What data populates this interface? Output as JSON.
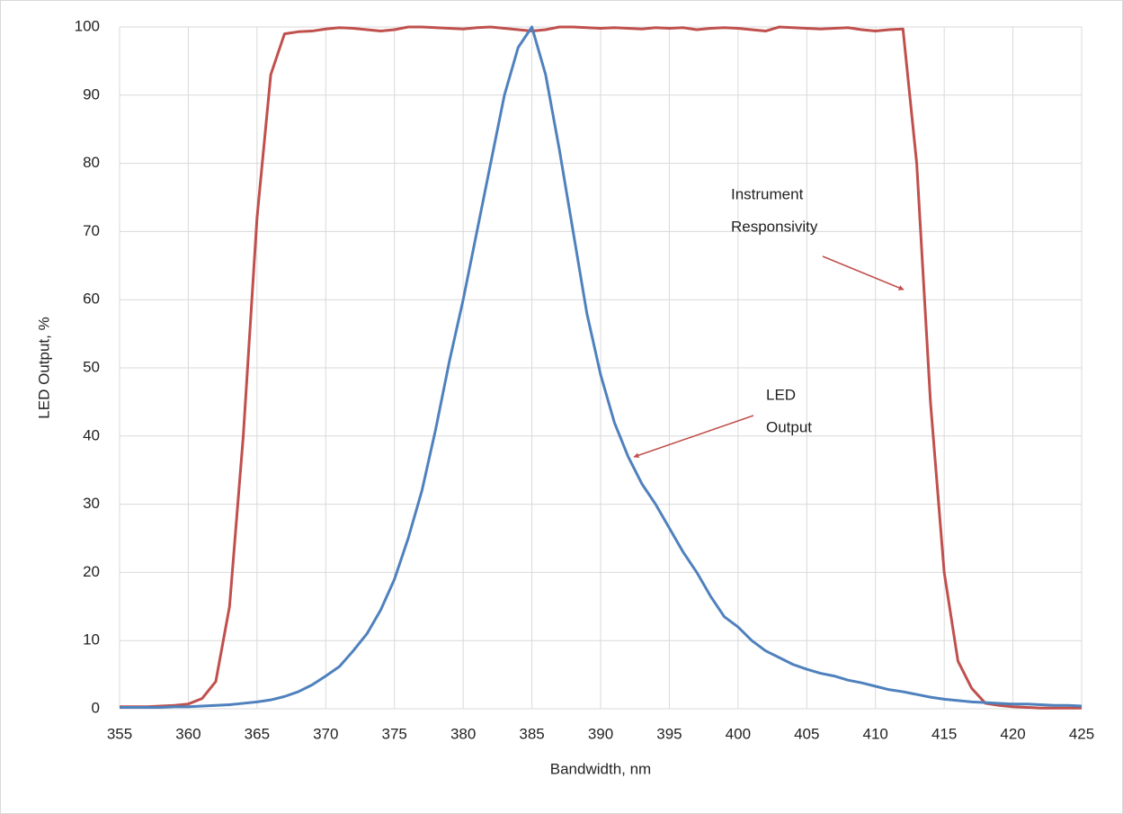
{
  "chart_data": {
    "type": "line",
    "x_label": "Bandwidth, nm",
    "y_label": "LED Output, %",
    "x": [
      355,
      356,
      357,
      358,
      359,
      360,
      361,
      362,
      363,
      364,
      365,
      366,
      367,
      368,
      369,
      370,
      371,
      372,
      373,
      374,
      375,
      376,
      377,
      378,
      379,
      380,
      381,
      382,
      383,
      384,
      385,
      386,
      387,
      388,
      389,
      390,
      391,
      392,
      393,
      394,
      395,
      396,
      397,
      398,
      399,
      400,
      401,
      402,
      403,
      404,
      405,
      406,
      407,
      408,
      409,
      410,
      411,
      412,
      413,
      414,
      415,
      416,
      417,
      418,
      419,
      420,
      421,
      422,
      423,
      424,
      425
    ],
    "series": [
      {
        "name": "Instrument Responsivity",
        "color": "#c0504d",
        "values": [
          0.3,
          0.3,
          0.3,
          0.4,
          0.5,
          0.7,
          1.5,
          4,
          15,
          40,
          72,
          93,
          99,
          99.3,
          99.4,
          99.7,
          99.9,
          99.8,
          99.6,
          99.4,
          99.6,
          100,
          100,
          99.9,
          99.8,
          99.7,
          99.9,
          100,
          99.8,
          99.6,
          99.4,
          99.6,
          100,
          100,
          99.9,
          99.8,
          99.9,
          99.8,
          99.7,
          99.9,
          99.8,
          99.9,
          99.6,
          99.8,
          99.9,
          99.8,
          99.6,
          99.4,
          100,
          99.9,
          99.8,
          99.7,
          99.8,
          99.9,
          99.6,
          99.4,
          99.6,
          99.7,
          80,
          45,
          20,
          7,
          3,
          0.8,
          0.5,
          0.3,
          0.2,
          0.1,
          0.1,
          0.1,
          0.1
        ]
      },
      {
        "name": "LED Output",
        "color": "#4f81bd",
        "values": [
          0.2,
          0.2,
          0.2,
          0.2,
          0.3,
          0.3,
          0.4,
          0.5,
          0.6,
          0.8,
          1,
          1.3,
          1.8,
          2.5,
          3.5,
          4.8,
          6.2,
          8.5,
          11,
          14.5,
          19,
          25,
          32,
          41,
          51,
          60,
          70,
          80,
          90,
          97,
          100,
          93,
          82,
          70,
          58,
          49,
          42,
          37,
          33,
          30,
          26.5,
          23,
          20,
          16.5,
          13.5,
          12,
          10,
          8.5,
          7.5,
          6.5,
          5.8,
          5.2,
          4.8,
          4.2,
          3.8,
          3.3,
          2.8,
          2.5,
          2.1,
          1.7,
          1.4,
          1.2,
          1,
          0.9,
          0.8,
          0.7,
          0.7,
          0.6,
          0.5,
          0.5,
          0.4
        ]
      }
    ],
    "annotations": [
      {
        "lines": [
          "Instrument",
          "Responsivity"
        ]
      },
      {
        "lines": [
          "LED",
          "Output"
        ]
      }
    ],
    "xlim": [
      355,
      425
    ],
    "xticks": [
      355,
      360,
      365,
      370,
      375,
      380,
      385,
      390,
      395,
      400,
      405,
      410,
      415,
      420,
      425
    ],
    "ylim": [
      0,
      100
    ],
    "yticks": [
      0,
      10,
      20,
      30,
      40,
      50,
      60,
      70,
      80,
      90,
      100
    ],
    "grid": true
  }
}
